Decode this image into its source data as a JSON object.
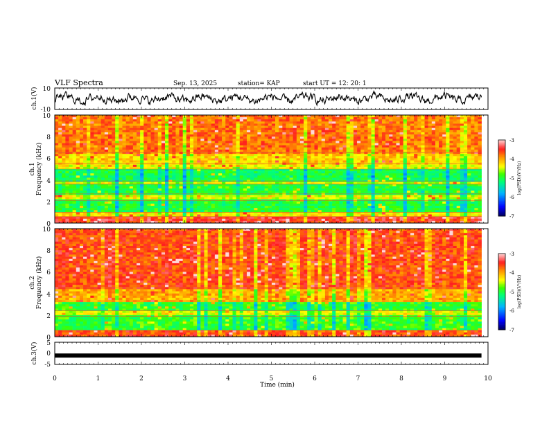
{
  "header": {
    "title": "VLF Spectra",
    "date": "Sep. 13, 2025",
    "station": "station= KAP",
    "start_ut": "start  UT =   12: 20: 1"
  },
  "chart_data": [
    {
      "id": "ch1_waveform",
      "type": "line",
      "ylabel": "ch.1(V)",
      "ylim": [
        -10,
        10
      ],
      "yticks": [
        "10",
        "-10"
      ],
      "note": "noisy voltage trace fluctuating around 0 V",
      "color": "#000000"
    },
    {
      "id": "ch1_spectrogram",
      "type": "heatmap",
      "ylabel_top": "ch.1",
      "ylabel": "Frequency  (kHz)",
      "ylim": [
        0,
        10
      ],
      "yticks": [
        "10",
        "8",
        "6",
        "4",
        "2",
        "0"
      ],
      "xlim": [
        0,
        9.85
      ],
      "bands": [
        {
          "from": 0,
          "to": 0.6,
          "level": -3.5
        },
        {
          "from": 0.6,
          "to": 1.0,
          "level": -4.3
        },
        {
          "from": 1.0,
          "to": 2.1,
          "level": -5.0
        },
        {
          "from": 2.1,
          "to": 2.7,
          "level": -4.4
        },
        {
          "from": 2.7,
          "to": 3.6,
          "level": -5.0
        },
        {
          "from": 3.6,
          "to": 3.9,
          "level": -4.5
        },
        {
          "from": 3.9,
          "to": 5.0,
          "level": -5.1
        },
        {
          "from": 5.0,
          "to": 5.5,
          "level": -4.4
        },
        {
          "from": 5.5,
          "to": 6.5,
          "level": -4.2
        },
        {
          "from": 6.5,
          "to": 10.0,
          "level": -3.8
        }
      ],
      "colorbar": {
        "label": "log(PSD)(V²/Hz)",
        "ticks": [
          "-3",
          "-4",
          "-5",
          "-6",
          "-7"
        ],
        "range": [
          -7,
          -3
        ]
      }
    },
    {
      "id": "ch2_spectrogram",
      "type": "heatmap",
      "ylabel_top": "ch.2",
      "ylabel": "Frequency  (kHz)",
      "ylim": [
        0,
        10
      ],
      "yticks": [
        "10",
        "8",
        "6",
        "4",
        "2",
        "0"
      ],
      "xlim": [
        0,
        9.85
      ],
      "bands": [
        {
          "from": 0,
          "to": 0.6,
          "level": -3.6
        },
        {
          "from": 0.6,
          "to": 1.9,
          "level": -4.9
        },
        {
          "from": 1.9,
          "to": 2.4,
          "level": -4.4
        },
        {
          "from": 2.4,
          "to": 3.3,
          "level": -4.9
        },
        {
          "from": 3.3,
          "to": 4.5,
          "level": -4.0
        },
        {
          "from": 4.5,
          "to": 10.0,
          "level": -3.6
        }
      ],
      "colorbar": {
        "label": "log(PSD)(V²/Hz)",
        "ticks": [
          "-3",
          "-4",
          "-5",
          "-6",
          "-7"
        ],
        "range": [
          -7,
          -3
        ]
      }
    },
    {
      "id": "ch3_waveform",
      "type": "line",
      "ylabel": "ch.3(V)",
      "ylim": [
        -5,
        5
      ],
      "yticks": [
        "5",
        "0",
        "-5"
      ],
      "note": "flat thick trace near -1 V",
      "level": -1,
      "color": "#000000"
    }
  ],
  "x_axis": {
    "label": "Time  (min)",
    "ticks": [
      "0",
      "1",
      "2",
      "3",
      "4",
      "5",
      "6",
      "7",
      "8",
      "9",
      "10"
    ],
    "xlim": [
      0,
      10
    ],
    "data_end": 9.85
  }
}
